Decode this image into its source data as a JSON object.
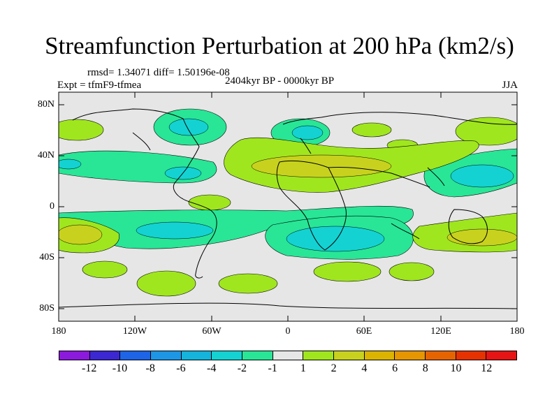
{
  "title": "Streamfunction Perturbation at 200 hPa (km2/s)",
  "stats": "rmsd= 1.34071  diff= 1.50196e-08",
  "experiment": "Expt = tfmF9-tfmea",
  "period": "2404kyr BP - 0000kyr BP",
  "season": "JJA",
  "y_ticks": [
    "80N",
    "40N",
    "0",
    "40S",
    "80S"
  ],
  "x_ticks": [
    "180",
    "120W",
    "60W",
    "0",
    "60E",
    "120E",
    "180"
  ],
  "colorbar": {
    "colors": [
      "#8c1adc",
      "#3c28d2",
      "#1e64e6",
      "#1e96e6",
      "#14b4dc",
      "#14d2d2",
      "#28e696",
      "#e6e6e6",
      "#a0e61e",
      "#c8d21e",
      "#dcb400",
      "#e69600",
      "#e66400",
      "#e63200",
      "#e61414"
    ],
    "labels": [
      "-12",
      "-10",
      "-8",
      "-6",
      "-4",
      "-2",
      "-1",
      "1",
      "2",
      "4",
      "6",
      "8",
      "10",
      "12"
    ]
  },
  "colors": {
    "background_field": "#e6e6e6",
    "neg_1_2": "#28e696",
    "neg_2_4": "#14d2d2",
    "pos_1_2": "#a0e61e",
    "pos_2_4": "#c8d21e"
  }
}
